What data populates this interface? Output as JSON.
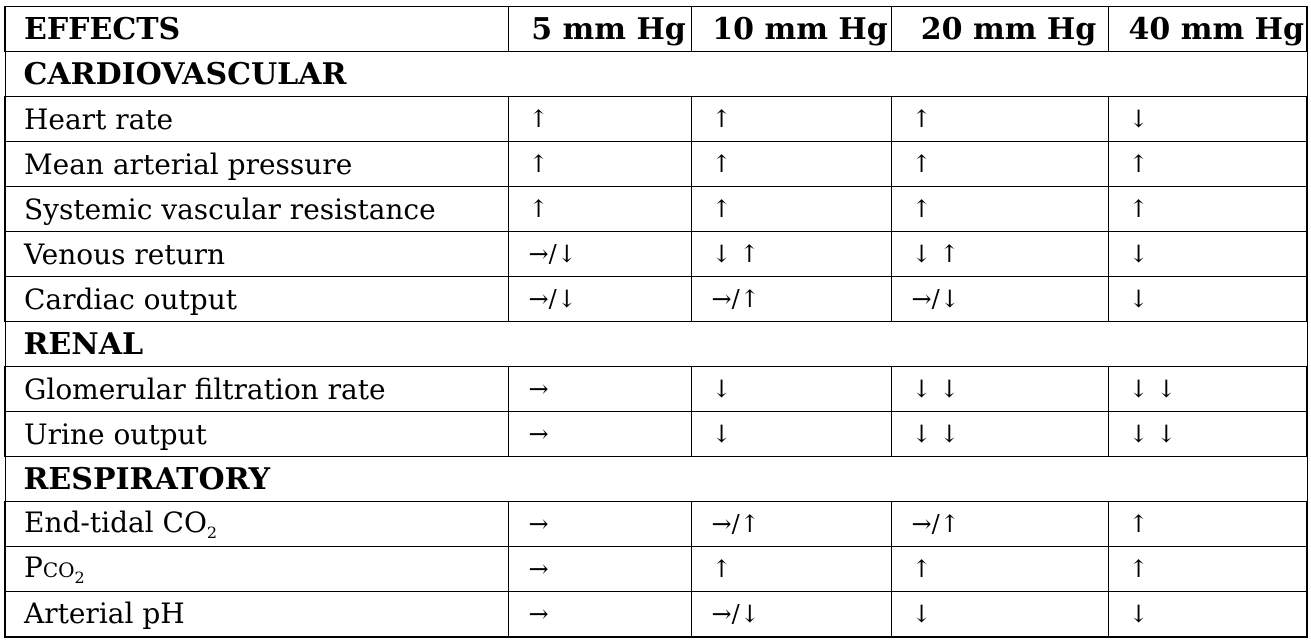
{
  "header": {
    "effects": "EFFECTS",
    "col1": "5 mm Hg",
    "col2": "10 mm Hg",
    "col3": "20 mm Hg",
    "col4": "40 mm Hg"
  },
  "sections": {
    "cardiovascular": {
      "title": "CARDIOVASCULAR",
      "rows": [
        {
          "label": "Heart rate",
          "v1": "↑",
          "v2": "↑",
          "v3": "↑",
          "v4": "↓"
        },
        {
          "label": "Mean arterial pressure",
          "v1": "↑",
          "v2": "↑",
          "v3": "↑",
          "v4": "↑"
        },
        {
          "label": "Systemic vascular resistance",
          "v1": "↑",
          "v2": "↑",
          "v3": "↑",
          "v4": "↑"
        },
        {
          "label": "Venous return",
          "v1": "→/↓",
          "v2": "↓ ↑",
          "v3": "↓ ↑",
          "v4": "↓"
        },
        {
          "label": "Cardiac output",
          "v1": "→/↓",
          "v2": "→/↑",
          "v3": "→/↓",
          "v4": "↓"
        }
      ]
    },
    "renal": {
      "title": "RENAL",
      "rows": [
        {
          "label": "Glomerular filtration rate",
          "v1": "→",
          "v2": "↓",
          "v3": "↓ ↓",
          "v4": "↓ ↓"
        },
        {
          "label": "Urine output",
          "v1": "→",
          "v2": "↓",
          "v3": "↓ ↓",
          "v4": "↓ ↓"
        }
      ]
    },
    "respiratory": {
      "title": "RESPIRATORY",
      "rows": [
        {
          "label": "End-tidal CO",
          "sub": "2",
          "v1": "→",
          "v2": "→/↑",
          "v3": "→/↑",
          "v4": "↑"
        },
        {
          "label": "P",
          "label_sc": "co",
          "sub": "2",
          "v1": "→",
          "v2": "↑",
          "v3": "↑",
          "v4": "↑"
        },
        {
          "label": "Arterial pH",
          "v1": "→",
          "v2": "→/↓",
          "v3": "↓",
          "v4": "↓"
        }
      ]
    }
  }
}
